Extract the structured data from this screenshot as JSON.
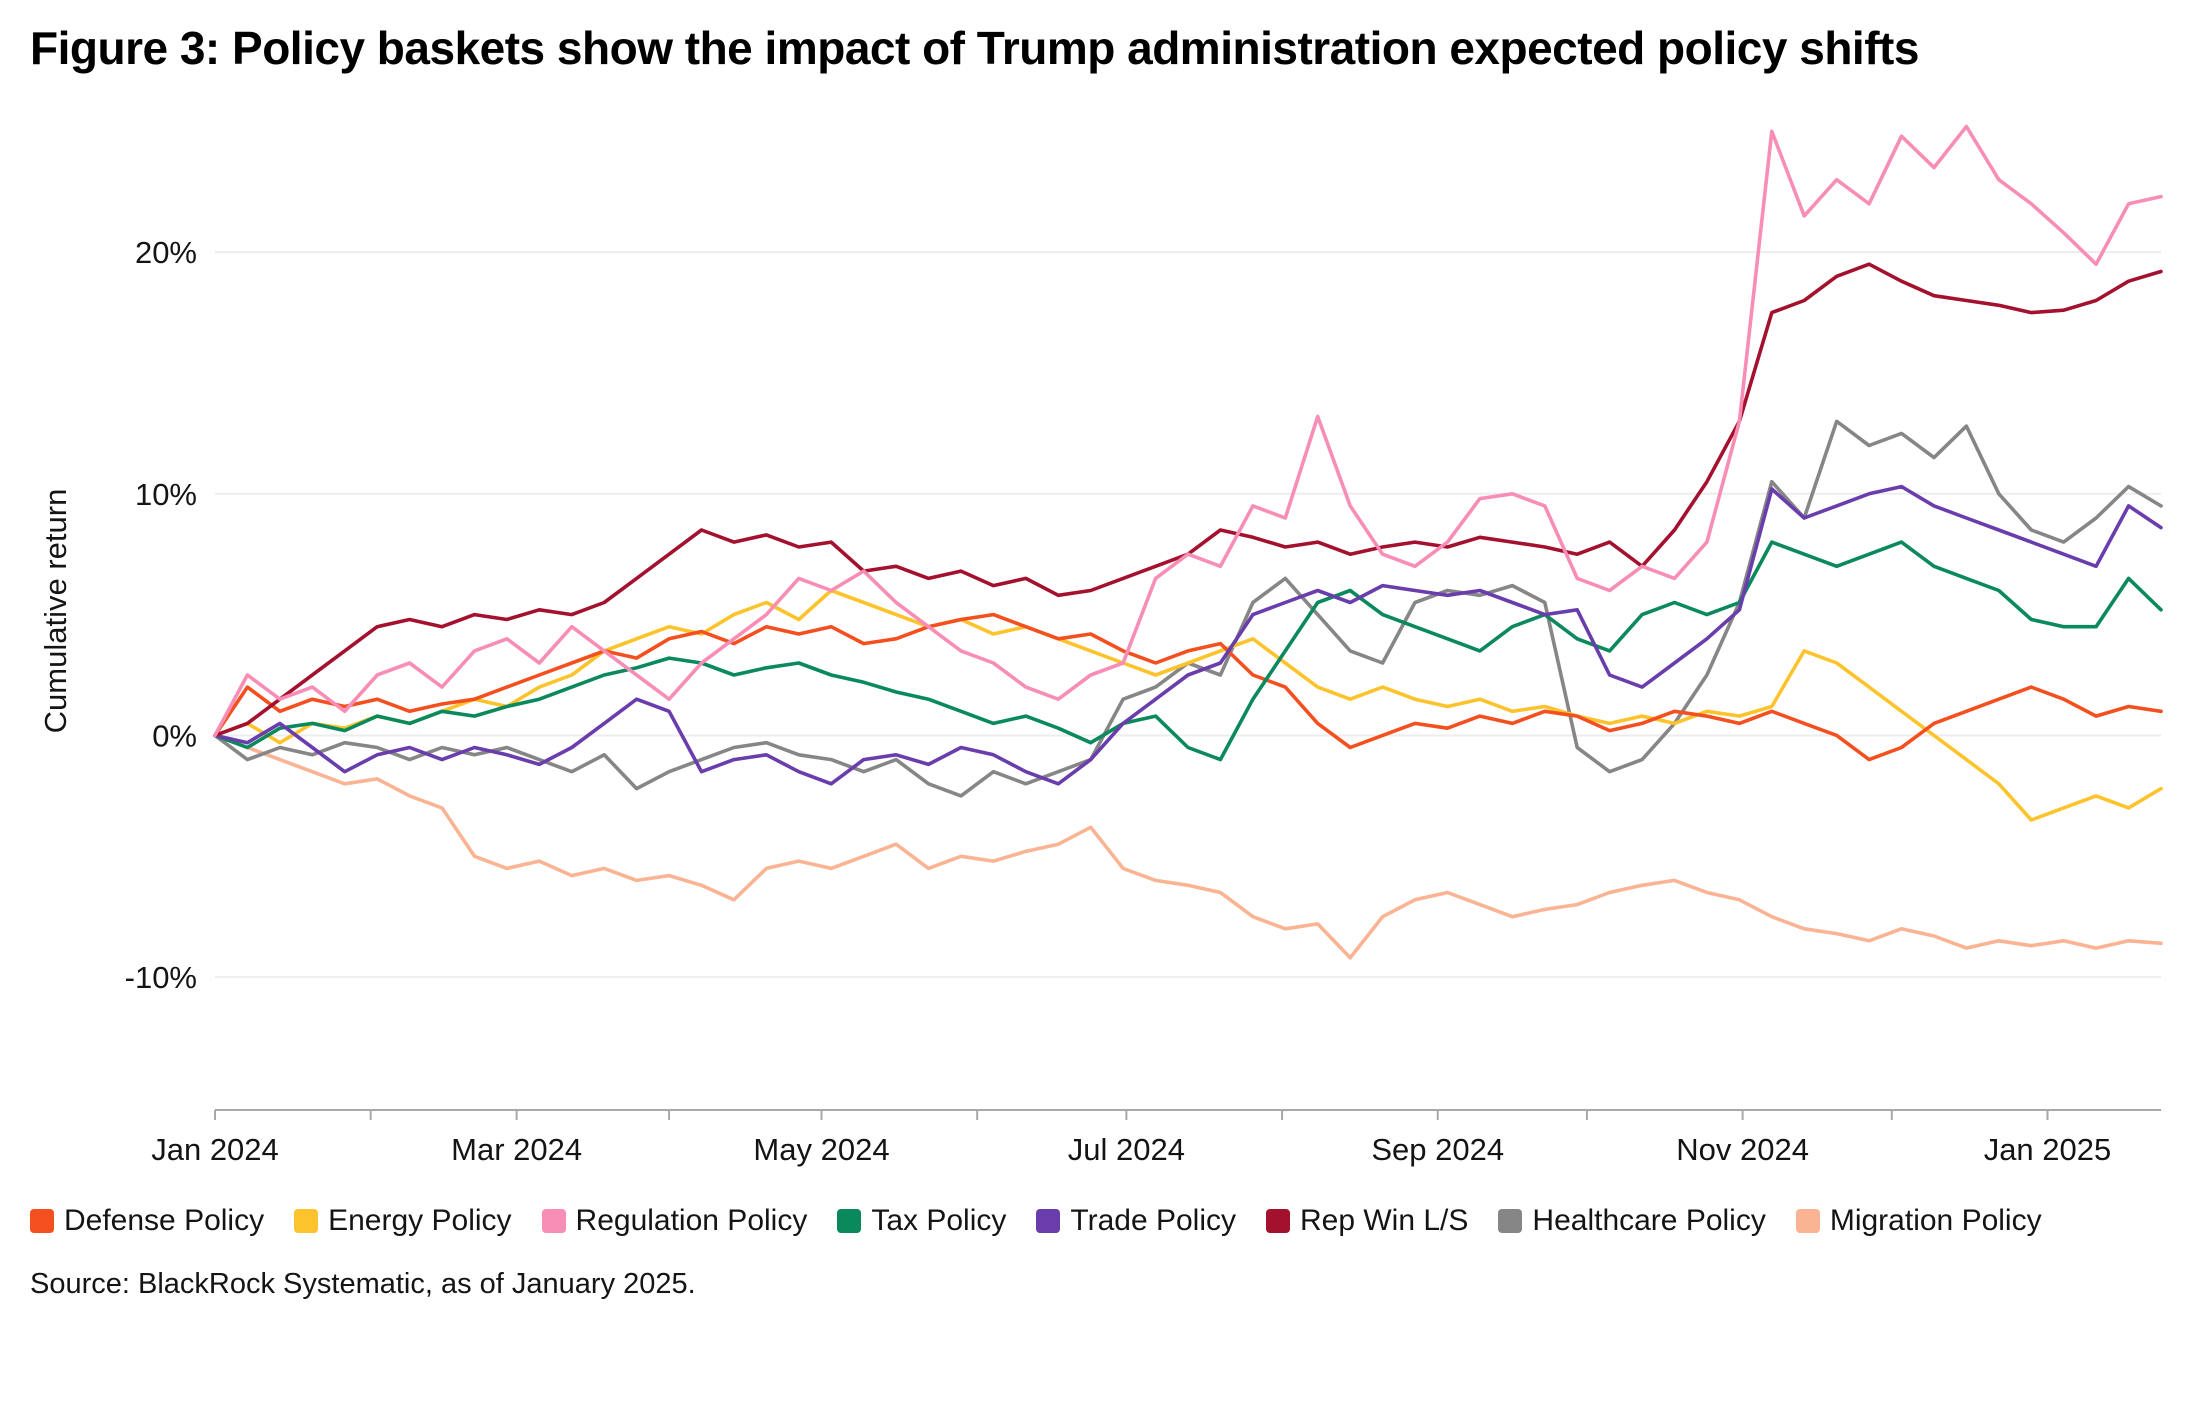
{
  "figure": {
    "title": "Figure 3: Policy baskets show the impact of Trump administration expected policy shifts",
    "source": "Source: BlackRock Systematic, as of January 2025."
  },
  "chart_data": {
    "type": "line",
    "title": "Figure 3: Policy baskets show the impact of Trump administration expected policy shifts",
    "xlabel": "",
    "ylabel": "Cumulative return",
    "x_unit": "weekly samples, Jan 2024 through late Jan 2025 (index 0-60)",
    "xlim": [
      0,
      60
    ],
    "ylim": [
      -15.5,
      25.8
    ],
    "grid": "horizontal light-gray lines at y ticks",
    "legend_position": "bottom",
    "axis_color": "#a8a8a8",
    "grid_color": "#ededed",
    "y_ticks": [
      {
        "value": -10,
        "label": "-10%"
      },
      {
        "value": 0,
        "label": "0%"
      },
      {
        "value": 10,
        "label": "10%"
      },
      {
        "value": 20,
        "label": "20%"
      }
    ],
    "x_ticks": [
      {
        "pos": 0,
        "label": "Jan 2024"
      },
      {
        "pos": 9.3,
        "label": "Mar 2024"
      },
      {
        "pos": 18.7,
        "label": "May 2024"
      },
      {
        "pos": 28.1,
        "label": "Jul 2024"
      },
      {
        "pos": 37.7,
        "label": "Sep 2024"
      },
      {
        "pos": 47.1,
        "label": "Nov 2024"
      },
      {
        "pos": 56.5,
        "label": "Jan 2025"
      }
    ],
    "x_minor_ticks": [
      0,
      4.8,
      9.3,
      14.0,
      18.7,
      23.5,
      28.1,
      32.9,
      37.7,
      42.3,
      47.1,
      51.7,
      56.5
    ],
    "draw_order": [
      "migration",
      "healthcare",
      "energy",
      "defense",
      "tax",
      "trade",
      "rep_win",
      "regulation"
    ],
    "series": [
      {
        "key": "defense",
        "name": "Defense Policy",
        "color": "#F4501F",
        "values": [
          0.0,
          2.0,
          1.0,
          1.5,
          1.2,
          1.5,
          1.0,
          1.3,
          1.5,
          2.0,
          2.5,
          3.0,
          3.5,
          3.2,
          4.0,
          4.3,
          3.8,
          4.5,
          4.2,
          4.5,
          3.8,
          4.0,
          4.5,
          4.8,
          5.0,
          4.5,
          4.0,
          4.2,
          3.5,
          3.0,
          3.5,
          3.8,
          2.5,
          2.0,
          0.5,
          -0.5,
          0.0,
          0.5,
          0.3,
          0.8,
          0.5,
          1.0,
          0.8,
          0.2,
          0.5,
          1.0,
          0.8,
          0.5,
          1.0,
          0.5,
          0.0,
          -1.0,
          -0.5,
          0.5,
          1.0,
          1.5,
          2.0,
          1.5,
          0.8,
          1.2,
          1.0
        ]
      },
      {
        "key": "energy",
        "name": "Energy Policy",
        "color": "#FCC32C",
        "values": [
          0.0,
          0.5,
          -0.3,
          0.5,
          0.3,
          0.8,
          0.5,
          1.0,
          1.5,
          1.2,
          2.0,
          2.5,
          3.5,
          4.0,
          4.5,
          4.2,
          5.0,
          5.5,
          4.8,
          6.0,
          5.5,
          5.0,
          4.5,
          4.8,
          4.2,
          4.5,
          4.0,
          3.5,
          3.0,
          2.5,
          3.0,
          3.5,
          4.0,
          3.0,
          2.0,
          1.5,
          2.0,
          1.5,
          1.2,
          1.5,
          1.0,
          1.2,
          0.8,
          0.5,
          0.8,
          0.5,
          1.0,
          0.8,
          1.2,
          3.5,
          3.0,
          2.0,
          1.0,
          0.0,
          -1.0,
          -2.0,
          -3.5,
          -3.0,
          -2.5,
          -3.0,
          -2.2
        ]
      },
      {
        "key": "regulation",
        "name": "Regulation Policy",
        "color": "#F88DB6",
        "values": [
          0.0,
          2.5,
          1.5,
          2.0,
          1.0,
          2.5,
          3.0,
          2.0,
          3.5,
          4.0,
          3.0,
          4.5,
          3.5,
          2.5,
          1.5,
          3.0,
          4.0,
          5.0,
          6.5,
          6.0,
          6.8,
          5.5,
          4.5,
          3.5,
          3.0,
          2.0,
          1.5,
          2.5,
          3.0,
          6.5,
          7.5,
          7.0,
          9.5,
          9.0,
          13.2,
          9.5,
          7.5,
          7.0,
          8.0,
          9.8,
          10.0,
          9.5,
          6.5,
          6.0,
          7.0,
          6.5,
          8.0,
          13.0,
          25.0,
          21.5,
          23.0,
          22.0,
          24.8,
          23.5,
          25.2,
          23.0,
          22.0,
          20.8,
          19.5,
          22.0,
          22.3
        ]
      },
      {
        "key": "tax",
        "name": "Tax Policy",
        "color": "#0A8A5C",
        "values": [
          0.0,
          -0.5,
          0.3,
          0.5,
          0.2,
          0.8,
          0.5,
          1.0,
          0.8,
          1.2,
          1.5,
          2.0,
          2.5,
          2.8,
          3.2,
          3.0,
          2.5,
          2.8,
          3.0,
          2.5,
          2.2,
          1.8,
          1.5,
          1.0,
          0.5,
          0.8,
          0.3,
          -0.3,
          0.5,
          0.8,
          -0.5,
          -1.0,
          1.5,
          3.5,
          5.5,
          6.0,
          5.0,
          4.5,
          4.0,
          3.5,
          4.5,
          5.0,
          4.0,
          3.5,
          5.0,
          5.5,
          5.0,
          5.5,
          8.0,
          7.5,
          7.0,
          7.5,
          8.0,
          7.0,
          6.5,
          6.0,
          4.8,
          4.5,
          4.5,
          6.5,
          5.2
        ]
      },
      {
        "key": "trade",
        "name": "Trade Policy",
        "color": "#6A3DAD",
        "values": [
          0.0,
          -0.3,
          0.5,
          -0.5,
          -1.5,
          -0.8,
          -0.5,
          -1.0,
          -0.5,
          -0.8,
          -1.2,
          -0.5,
          0.5,
          1.5,
          1.0,
          -1.5,
          -1.0,
          -0.8,
          -1.5,
          -2.0,
          -1.0,
          -0.8,
          -1.2,
          -0.5,
          -0.8,
          -1.5,
          -2.0,
          -1.0,
          0.5,
          1.5,
          2.5,
          3.0,
          5.0,
          5.5,
          6.0,
          5.5,
          6.2,
          6.0,
          5.8,
          6.0,
          5.5,
          5.0,
          5.2,
          2.5,
          2.0,
          3.0,
          4.0,
          5.2,
          10.2,
          9.0,
          9.5,
          10.0,
          10.3,
          9.5,
          9.0,
          8.5,
          8.0,
          7.5,
          7.0,
          9.5,
          8.6
        ]
      },
      {
        "key": "rep_win",
        "name": "Rep Win L/S",
        "color": "#A3112E",
        "values": [
          0.0,
          0.5,
          1.5,
          2.5,
          3.5,
          4.5,
          4.8,
          4.5,
          5.0,
          4.8,
          5.2,
          5.0,
          5.5,
          6.5,
          7.5,
          8.5,
          8.0,
          8.3,
          7.8,
          8.0,
          6.8,
          7.0,
          6.5,
          6.8,
          6.2,
          6.5,
          5.8,
          6.0,
          6.5,
          7.0,
          7.5,
          8.5,
          8.2,
          7.8,
          8.0,
          7.5,
          7.8,
          8.0,
          7.8,
          8.2,
          8.0,
          7.8,
          7.5,
          8.0,
          7.0,
          8.5,
          10.5,
          13.0,
          17.5,
          18.0,
          19.0,
          19.5,
          18.8,
          18.2,
          18.0,
          17.8,
          17.5,
          17.6,
          18.0,
          18.8,
          19.2
        ]
      },
      {
        "key": "healthcare",
        "name": "Healthcare Policy",
        "color": "#868686",
        "values": [
          0.0,
          -1.0,
          -0.5,
          -0.8,
          -0.3,
          -0.5,
          -1.0,
          -0.5,
          -0.8,
          -0.5,
          -1.0,
          -1.5,
          -0.8,
          -2.2,
          -1.5,
          -1.0,
          -0.5,
          -0.3,
          -0.8,
          -1.0,
          -1.5,
          -1.0,
          -2.0,
          -2.5,
          -1.5,
          -2.0,
          -1.5,
          -1.0,
          1.5,
          2.0,
          3.0,
          2.5,
          5.5,
          6.5,
          5.0,
          3.5,
          3.0,
          5.5,
          6.0,
          5.8,
          6.2,
          5.5,
          -0.5,
          -1.5,
          -1.0,
          0.5,
          2.5,
          5.5,
          10.5,
          9.0,
          13.0,
          12.0,
          12.5,
          11.5,
          12.8,
          10.0,
          8.5,
          8.0,
          9.0,
          10.3,
          9.5
        ]
      },
      {
        "key": "migration",
        "name": "Migration Policy",
        "color": "#FBB493",
        "values": [
          0.0,
          -0.5,
          -1.0,
          -1.5,
          -2.0,
          -1.8,
          -2.5,
          -3.0,
          -5.0,
          -5.5,
          -5.2,
          -5.8,
          -5.5,
          -6.0,
          -5.8,
          -6.2,
          -6.8,
          -5.5,
          -5.2,
          -5.5,
          -5.0,
          -4.5,
          -5.5,
          -5.0,
          -5.2,
          -4.8,
          -4.5,
          -3.8,
          -5.5,
          -6.0,
          -6.2,
          -6.5,
          -7.5,
          -8.0,
          -7.8,
          -9.2,
          -7.5,
          -6.8,
          -6.5,
          -7.0,
          -7.5,
          -7.2,
          -7.0,
          -6.5,
          -6.2,
          -6.0,
          -6.5,
          -6.8,
          -7.5,
          -8.0,
          -8.2,
          -8.5,
          -8.0,
          -8.3,
          -8.8,
          -8.5,
          -8.7,
          -8.5,
          -8.8,
          -8.5,
          -8.6
        ]
      }
    ]
  }
}
